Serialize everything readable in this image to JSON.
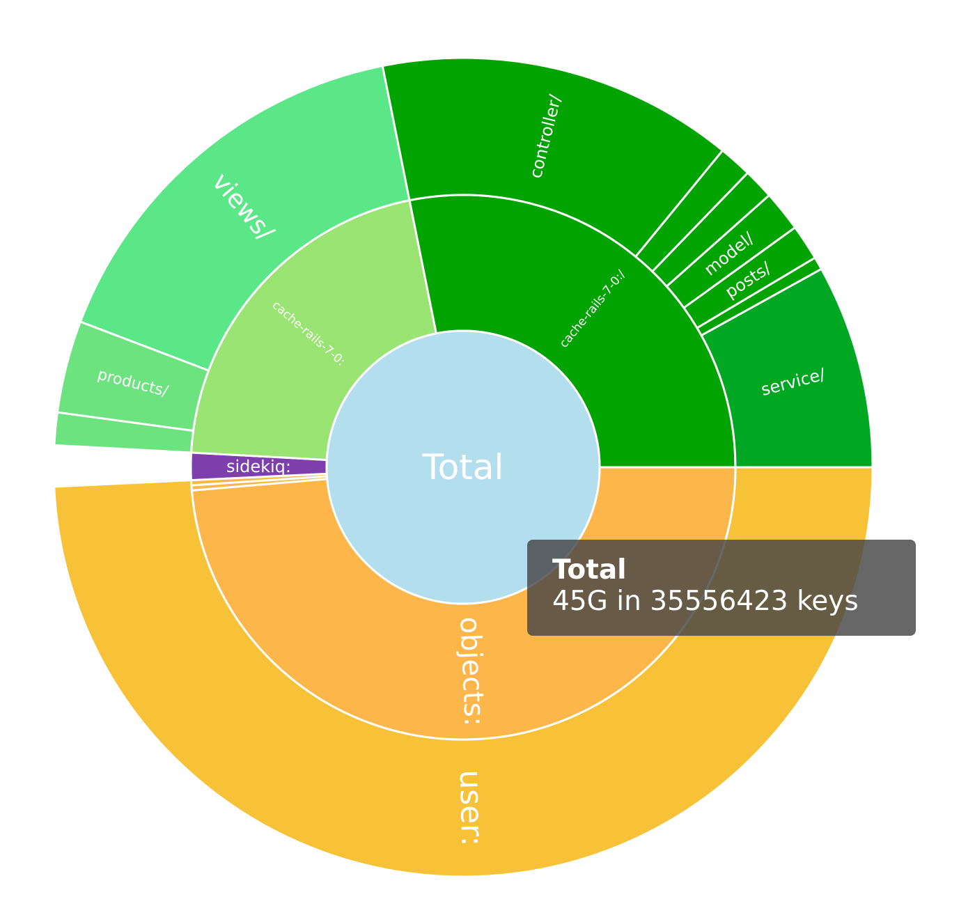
{
  "chart_data": {
    "type": "sunburst",
    "title": "",
    "root": {
      "label": "Total",
      "color": "#b3deee",
      "children": [
        {
          "label": "user:",
          "color": "#f7c237",
          "value": 48.8,
          "children": [
            {
              "label": "objects:",
              "color": "#fdb64a",
              "value": 48.2
            },
            {
              "label": "",
              "color": "#fdb64a",
              "value": 0.3
            },
            {
              "label": "",
              "color": "#fdb64a",
              "value": 0.3
            }
          ]
        },
        {
          "label": "",
          "color": "#ffffff",
          "value": 1.6,
          "children": [
            {
              "label": "sidekiq:",
              "color": "#7c3fac",
              "value": 1.6
            }
          ]
        },
        {
          "label": "cache-rails-7-0:",
          "color": "#99e472",
          "value": 20.8,
          "children": [
            {
              "label": "",
              "color": "#6de37f",
              "value": 1.2
            },
            {
              "label": "products/",
              "color": "#6de37f",
              "value": 3.4
            },
            {
              "label": "views/",
              "color": "#5be787",
              "value": 15.0
            }
          ]
        },
        {
          "label": "cache-rails-7-0:/",
          "color": "#00a300",
          "value": 27.9,
          "children": [
            {
              "label": "controller/",
              "color": "#00a300",
              "value": 14.0
            },
            {
              "label": "",
              "color": "#00a300",
              "value": 1.3
            },
            {
              "label": "",
              "color": "#00a300",
              "value": 1.2
            },
            {
              "label": "model/",
              "color": "#00a300",
              "value": 1.6
            },
            {
              "label": "posts/",
              "color": "#00a300",
              "value": 1.4
            },
            {
              "label": "",
              "color": "#00a300",
              "value": 0.5
            },
            {
              "label": "service/",
              "color": "#00a722",
              "value": 8.0
            }
          ]
        }
      ]
    }
  },
  "tooltip": {
    "title": "Total",
    "body": "45G in 35556423 keys"
  }
}
